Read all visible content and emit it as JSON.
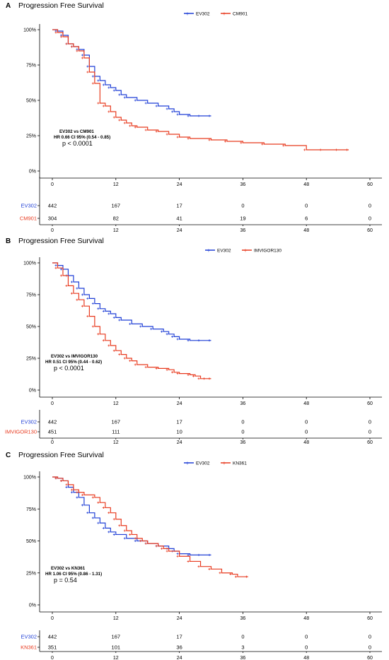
{
  "colors": {
    "ev302": "#1f3fd6",
    "comparator": "#e83a1f",
    "axis": "#000000"
  },
  "chart_data": [
    {
      "type": "line",
      "panel_letter": "A",
      "title": "Progression Free Survival",
      "xlabel": "",
      "ylabel": "",
      "xlim": [
        0,
        60
      ],
      "ylim": [
        0,
        100
      ],
      "x_ticks": [
        "0",
        "12",
        "24",
        "36",
        "48",
        "60"
      ],
      "y_ticks": [
        "0%",
        "25%",
        "50%",
        "75%",
        "100%"
      ],
      "legend": "top-center",
      "grid": false,
      "series": [
        {
          "name": "EV302",
          "color": "#1f3fd6",
          "points": [
            [
              0,
              100
            ],
            [
              1,
              99
            ],
            [
              2,
              96
            ],
            [
              3,
              90
            ],
            [
              4,
              88
            ],
            [
              5,
              86
            ],
            [
              6,
              82
            ],
            [
              7,
              74
            ],
            [
              8,
              67
            ],
            [
              9,
              64
            ],
            [
              10,
              61
            ],
            [
              11,
              59
            ],
            [
              12,
              57
            ],
            [
              13,
              54
            ],
            [
              14,
              52
            ],
            [
              16,
              50
            ],
            [
              18,
              48
            ],
            [
              20,
              46
            ],
            [
              22,
              44
            ],
            [
              23,
              42
            ],
            [
              24,
              40
            ],
            [
              26,
              39
            ],
            [
              28,
              39
            ],
            [
              30,
              39
            ]
          ]
        },
        {
          "name": "CM901",
          "color": "#e83a1f",
          "points": [
            [
              0,
              100
            ],
            [
              1,
              98
            ],
            [
              2,
              95
            ],
            [
              3,
              90
            ],
            [
              4,
              88
            ],
            [
              5,
              85
            ],
            [
              6,
              80
            ],
            [
              7,
              70
            ],
            [
              8,
              62
            ],
            [
              9,
              48
            ],
            [
              10,
              46
            ],
            [
              11,
              42
            ],
            [
              12,
              38
            ],
            [
              13,
              36
            ],
            [
              14,
              34
            ],
            [
              15,
              32
            ],
            [
              16,
              31
            ],
            [
              18,
              29
            ],
            [
              20,
              28
            ],
            [
              22,
              26
            ],
            [
              24,
              24
            ],
            [
              26,
              23
            ],
            [
              30,
              22
            ],
            [
              33,
              21
            ],
            [
              36,
              20
            ],
            [
              40,
              19
            ],
            [
              44,
              18
            ],
            [
              48,
              15
            ],
            [
              51,
              15
            ],
            [
              54,
              15
            ],
            [
              56,
              15
            ]
          ]
        }
      ],
      "annotation": {
        "line1": "EV302 vs CM901",
        "line2": "HR 0.66 CI 95% (0.54 - 0.85)",
        "p": "p < 0.0001"
      },
      "risk_table": {
        "times": [
          "0",
          "12",
          "24",
          "36",
          "48",
          "60"
        ],
        "rows": [
          {
            "label": "EV302",
            "values": [
              "442",
              "167",
              "17",
              "0",
              "0",
              "0"
            ]
          },
          {
            "label": "CM901",
            "values": [
              "304",
              "82",
              "41",
              "19",
              "6",
              "0"
            ]
          }
        ]
      }
    },
    {
      "type": "line",
      "panel_letter": "B",
      "title": "Progression Free Survival",
      "xlabel": "",
      "ylabel": "",
      "xlim": [
        0,
        60
      ],
      "ylim": [
        0,
        100
      ],
      "x_ticks": [
        "0",
        "12",
        "24",
        "36",
        "48",
        "60"
      ],
      "y_ticks": [
        "0%",
        "25%",
        "50%",
        "75%",
        "100%"
      ],
      "legend": "top-center",
      "grid": false,
      "series": [
        {
          "name": "EV302",
          "color": "#1f3fd6",
          "points": [
            [
              0,
              100
            ],
            [
              1,
              98
            ],
            [
              2,
              95
            ],
            [
              3,
              90
            ],
            [
              4,
              85
            ],
            [
              5,
              80
            ],
            [
              6,
              75
            ],
            [
              7,
              72
            ],
            [
              8,
              68
            ],
            [
              9,
              64
            ],
            [
              10,
              62
            ],
            [
              11,
              60
            ],
            [
              12,
              57
            ],
            [
              13,
              55
            ],
            [
              15,
              52
            ],
            [
              17,
              50
            ],
            [
              19,
              48
            ],
            [
              21,
              46
            ],
            [
              22,
              44
            ],
            [
              23,
              42
            ],
            [
              24,
              40
            ],
            [
              26,
              39
            ],
            [
              28,
              39
            ],
            [
              30,
              39
            ]
          ]
        },
        {
          "name": "IMVIGOR130",
          "color": "#e83a1f",
          "points": [
            [
              0,
              100
            ],
            [
              1,
              96
            ],
            [
              2,
              90
            ],
            [
              3,
              82
            ],
            [
              4,
              76
            ],
            [
              5,
              71
            ],
            [
              6,
              66
            ],
            [
              7,
              58
            ],
            [
              8,
              50
            ],
            [
              9,
              44
            ],
            [
              10,
              39
            ],
            [
              11,
              35
            ],
            [
              12,
              31
            ],
            [
              13,
              28
            ],
            [
              14,
              25
            ],
            [
              15,
              23
            ],
            [
              16,
              20
            ],
            [
              18,
              18
            ],
            [
              20,
              17
            ],
            [
              22,
              16
            ],
            [
              23,
              14
            ],
            [
              24,
              13
            ],
            [
              26,
              12
            ],
            [
              27,
              11
            ],
            [
              28,
              9
            ],
            [
              29,
              9
            ],
            [
              30,
              9
            ]
          ]
        }
      ],
      "annotation": {
        "line1": "EV302 vs IMVIGOR130",
        "line2": "HR 0.51 CI 95% (0.44 - 0.62)",
        "p": "p < 0.0001"
      },
      "risk_table": {
        "times": [
          "0",
          "12",
          "24",
          "36",
          "48",
          "60"
        ],
        "rows": [
          {
            "label": "EV302",
            "values": [
              "442",
              "167",
              "17",
              "0",
              "0",
              "0"
            ]
          },
          {
            "label": "IMVIGOR130",
            "values": [
              "451",
              "111",
              "10",
              "0",
              "0",
              "0"
            ]
          }
        ]
      }
    },
    {
      "type": "line",
      "panel_letter": "C",
      "title": "Progression Free Survival",
      "xlabel": "",
      "ylabel": "",
      "xlim": [
        0,
        60
      ],
      "ylim": [
        0,
        100
      ],
      "x_ticks": [
        "0",
        "12",
        "24",
        "36",
        "48",
        "60"
      ],
      "y_ticks": [
        "0%",
        "25%",
        "50%",
        "75%",
        "100%"
      ],
      "legend": "top-center",
      "grid": false,
      "series": [
        {
          "name": "EV302",
          "color": "#1f3fd6",
          "points": [
            [
              0,
              100
            ],
            [
              1,
              99
            ],
            [
              2,
              97
            ],
            [
              3,
              92
            ],
            [
              4,
              88
            ],
            [
              5,
              84
            ],
            [
              6,
              78
            ],
            [
              7,
              72
            ],
            [
              8,
              68
            ],
            [
              9,
              64
            ],
            [
              10,
              60
            ],
            [
              11,
              57
            ],
            [
              12,
              55
            ],
            [
              14,
              52
            ],
            [
              16,
              50
            ],
            [
              18,
              48
            ],
            [
              20,
              46
            ],
            [
              22,
              44
            ],
            [
              23,
              42
            ],
            [
              24,
              40
            ],
            [
              26,
              39
            ],
            [
              28,
              39
            ],
            [
              30,
              39
            ]
          ]
        },
        {
          "name": "KN361",
          "color": "#e83a1f",
          "points": [
            [
              0,
              100
            ],
            [
              1,
              99
            ],
            [
              2,
              97
            ],
            [
              3,
              94
            ],
            [
              4,
              90
            ],
            [
              5,
              88
            ],
            [
              6,
              86
            ],
            [
              8,
              84
            ],
            [
              9,
              80
            ],
            [
              10,
              76
            ],
            [
              11,
              72
            ],
            [
              12,
              67
            ],
            [
              13,
              62
            ],
            [
              14,
              58
            ],
            [
              15,
              55
            ],
            [
              16,
              52
            ],
            [
              17,
              50
            ],
            [
              18,
              48
            ],
            [
              20,
              46
            ],
            [
              21,
              44
            ],
            [
              22,
              42
            ],
            [
              24,
              38
            ],
            [
              26,
              34
            ],
            [
              28,
              30
            ],
            [
              30,
              28
            ],
            [
              32,
              25
            ],
            [
              34,
              24
            ],
            [
              35,
              22
            ],
            [
              37,
              22
            ]
          ]
        }
      ],
      "annotation": {
        "line1": "EV302 vs KN361",
        "line2": "HR 1.06 CI 95% (0.86 - 1.31)",
        "p": "p = 0.54"
      },
      "risk_table": {
        "times": [
          "0",
          "12",
          "24",
          "36",
          "48",
          "60"
        ],
        "rows": [
          {
            "label": "EV302",
            "values": [
              "442",
              "167",
              "17",
              "0",
              "0",
              "0"
            ]
          },
          {
            "label": "KN361",
            "values": [
              "351",
              "101",
              "36",
              "3",
              "0",
              "0"
            ]
          }
        ]
      }
    }
  ]
}
